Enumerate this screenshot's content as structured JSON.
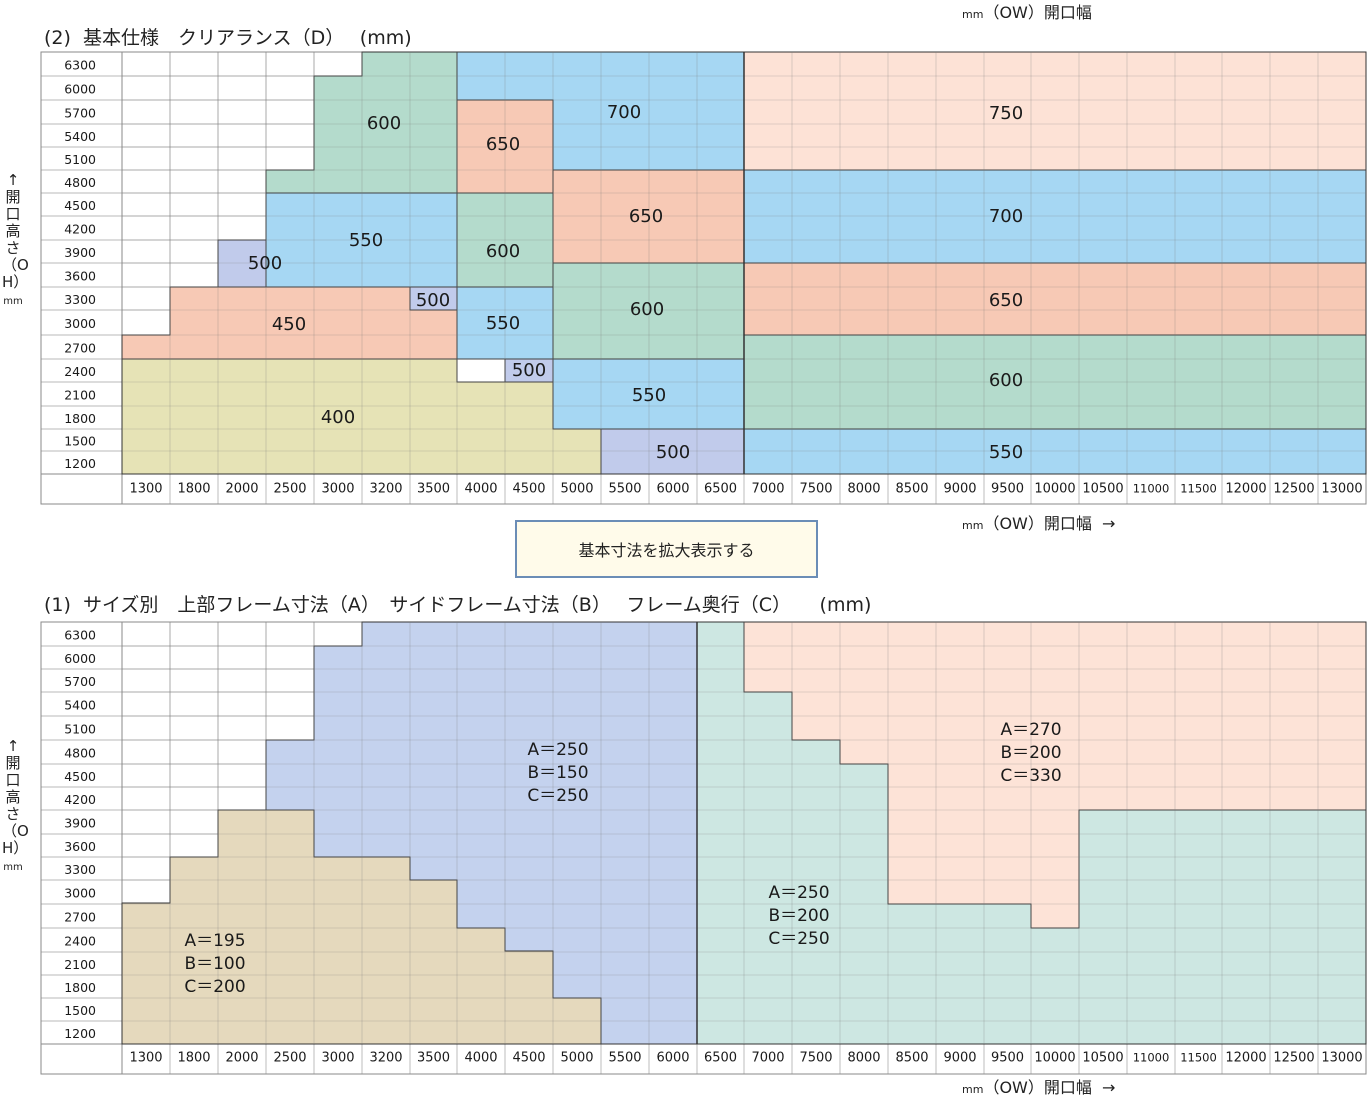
{
  "colors": {
    "tan": "#e6e3b6",
    "salmon": "#f7c9b5",
    "lightsalmon": "#fde2d6",
    "periwinkle": "#c1cbeb",
    "sky": "#a6d7f3",
    "mint": "#b4dbcc",
    "beige": "#e5d9bd",
    "blue": "#c4d2ee",
    "teal": "#cde7e2",
    "peach": "#fde3d7",
    "grid": "#8a8a8a",
    "button_border": "#6b8db6",
    "button_bg": "#fffbea"
  },
  "axis": {
    "x_ticks": [
      "1300",
      "1800",
      "2000",
      "2500",
      "3000",
      "3200",
      "3500",
      "4000",
      "4500",
      "5000",
      "5500",
      "6000",
      "6500",
      "7000",
      "7500",
      "8000",
      "8500",
      "9000",
      "9500",
      "10000",
      "10500",
      "11000",
      "11500",
      "12000",
      "12500",
      "13000"
    ],
    "y_ticks": [
      "6300",
      "6000",
      "5700",
      "5400",
      "5100",
      "4800",
      "4500",
      "4200",
      "3900",
      "3600",
      "3300",
      "3000",
      "2700",
      "2400",
      "2100",
      "1800",
      "1500",
      "1200"
    ],
    "y_title": "↑開口高さ（OH）",
    "y_unit": "mm"
  },
  "chart1": {
    "title": "(2)  基本仕様　クリアランス（D）　 (mm)",
    "top_unit_mm": "mm",
    "top_unit_text": "（OW）開口幅",
    "bottom_unit_mm": "mm",
    "bottom_unit_text": "（OW）開口幅  →",
    "region_labels": [
      "400",
      "450",
      "500",
      "500",
      "500",
      "550",
      "550",
      "550",
      "550",
      "600",
      "600",
      "600",
      "600",
      "650",
      "650",
      "650",
      "700",
      "700",
      "750",
      "500"
    ]
  },
  "button": {
    "label": "基本寸法を拡大表示する"
  },
  "chart2": {
    "title": "(1)  サイズ別　上部フレーム寸法（A）　サイドフレーム寸法（B）　 フレーム奥行（C）　　(mm)",
    "bottom_unit_mm": "mm",
    "bottom_unit_text": "（OW）開口幅  →",
    "region_labels": {
      "small": [
        "A＝195",
        "B＝100",
        "C＝200"
      ],
      "medium": [
        "A＝250",
        "B＝150",
        "C＝250"
      ],
      "large": [
        "A＝250",
        "B＝200",
        "C＝250"
      ],
      "xlarge": [
        "A＝270",
        "B＝200",
        "C＝330"
      ]
    }
  }
}
